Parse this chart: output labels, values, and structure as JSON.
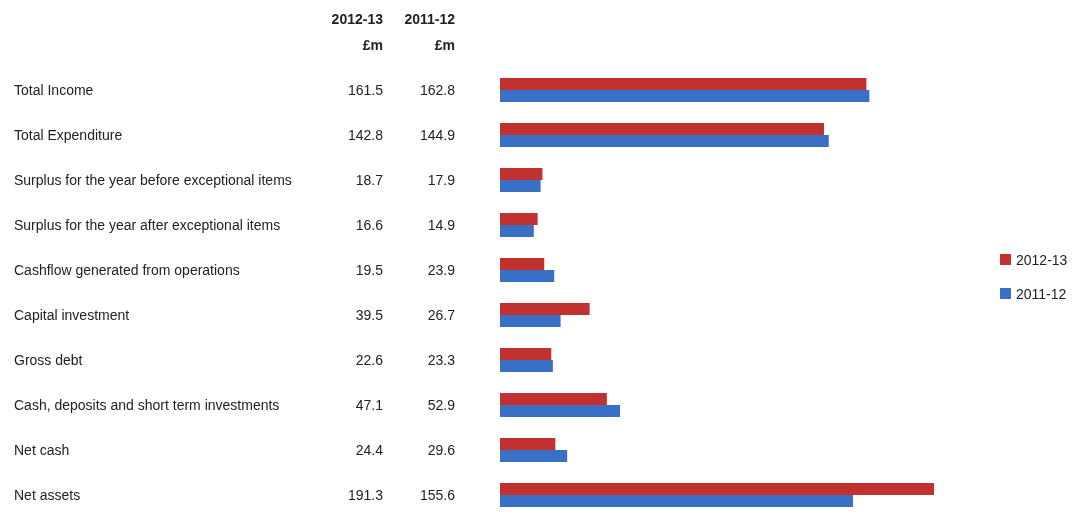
{
  "chart_data": {
    "type": "bar",
    "orientation": "horizontal",
    "xlabel": "£m",
    "data_labels": true,
    "legend": "right",
    "categories": [
      "Total Income",
      "Total Expenditure",
      "Surplus for the year before exceptional items",
      "Surplus for the year after exceptional items",
      "Cashflow generated from operations",
      "Capital investment",
      "Gross debt",
      "Cash, deposits and short term investments",
      "Net cash",
      "Net assets"
    ],
    "series": [
      {
        "name": "2012-13",
        "color": "#c0312f",
        "values": [
          161.5,
          142.8,
          18.7,
          16.6,
          19.5,
          39.5,
          22.6,
          47.1,
          24.4,
          191.3
        ]
      },
      {
        "name": "2011-12",
        "color": "#3a6fc6",
        "values": [
          162.8,
          144.9,
          17.9,
          14.9,
          23.9,
          26.7,
          23.3,
          52.9,
          29.6,
          155.6
        ]
      }
    ]
  }
}
